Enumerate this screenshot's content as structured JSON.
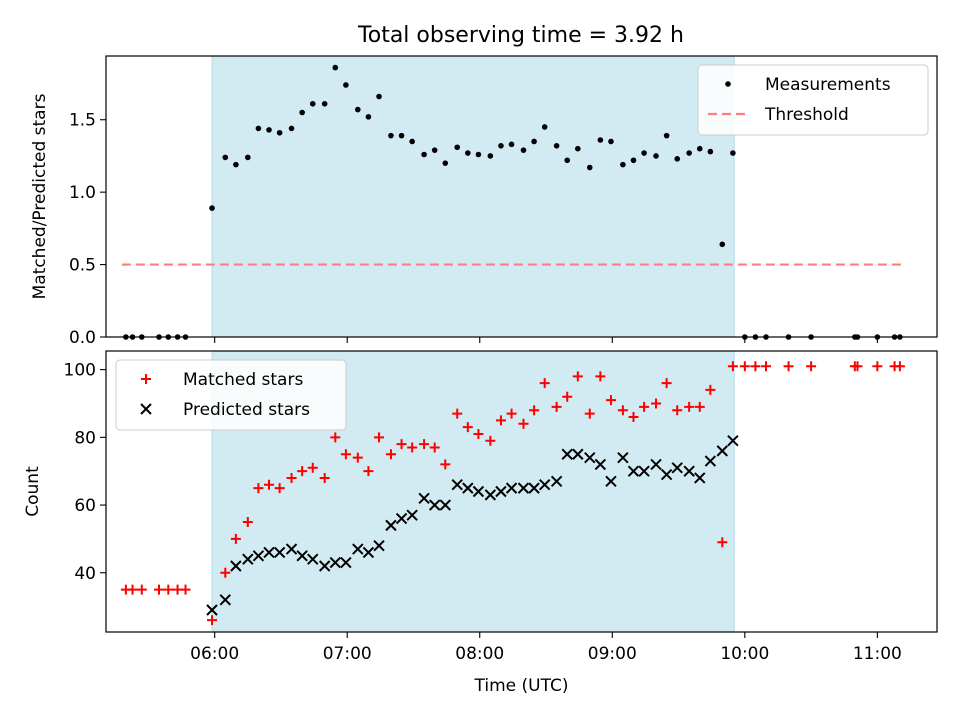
{
  "chart_data": [
    {
      "type": "scatter",
      "title": "Total observing time = 3.92 h",
      "xlabel": "",
      "ylabel": "Matched/Predicted stars",
      "ylim": [
        0,
        1.94
      ],
      "yticks": [
        0.0,
        0.5,
        1.0,
        1.5
      ],
      "ytick_labels": [
        "0.0",
        "0.5",
        "1.0",
        "1.5"
      ],
      "xlim": [
        5.18,
        11.45
      ],
      "shaded_span": [
        5.98,
        9.92
      ],
      "shade_color": "#add8e6",
      "legend_position": "upper right",
      "series": [
        {
          "name": "Measurements",
          "kind": "dot",
          "color": "#000000",
          "x": [
            5.33,
            5.38,
            5.45,
            5.58,
            5.65,
            5.72,
            5.78,
            5.98,
            6.08,
            6.16,
            6.25,
            6.33,
            6.41,
            6.49,
            6.58,
            6.66,
            6.74,
            6.83,
            6.91,
            6.99,
            7.08,
            7.16,
            7.24,
            7.33,
            7.41,
            7.49,
            7.58,
            7.66,
            7.74,
            7.83,
            7.91,
            7.99,
            8.08,
            8.16,
            8.24,
            8.33,
            8.41,
            8.49,
            8.58,
            8.66,
            8.74,
            8.83,
            8.91,
            8.99,
            9.08,
            9.16,
            9.24,
            9.33,
            9.41,
            9.49,
            9.58,
            9.66,
            9.74,
            9.83,
            9.91,
            10.0,
            10.08,
            10.16,
            10.33,
            10.5,
            10.83,
            10.85,
            11.0,
            11.13,
            11.17
          ],
          "y": [
            0,
            0,
            0,
            0,
            0,
            0,
            0,
            0.89,
            1.24,
            1.19,
            1.24,
            1.44,
            1.43,
            1.41,
            1.44,
            1.55,
            1.61,
            1.61,
            1.86,
            1.74,
            1.57,
            1.52,
            1.66,
            1.39,
            1.39,
            1.35,
            1.26,
            1.29,
            1.2,
            1.31,
            1.27,
            1.26,
            1.25,
            1.32,
            1.33,
            1.29,
            1.35,
            1.45,
            1.32,
            1.22,
            1.3,
            1.17,
            1.36,
            1.35,
            1.19,
            1.22,
            1.27,
            1.25,
            1.39,
            1.23,
            1.27,
            1.3,
            1.28,
            0.64,
            1.27,
            0,
            0,
            0,
            0,
            0,
            0,
            0,
            0,
            0,
            0
          ]
        },
        {
          "name": "Threshold",
          "kind": "dashed-line",
          "color": "#ff7f7f",
          "x": [
            5.3,
            11.2
          ],
          "y": [
            0.5,
            0.5
          ]
        }
      ]
    },
    {
      "type": "scatter",
      "title": "",
      "xlabel": "Time (UTC)",
      "ylabel": "Count",
      "ylim": [
        22.5,
        105.5
      ],
      "yticks": [
        40,
        60,
        80,
        100
      ],
      "ytick_labels": [
        "40",
        "60",
        "80",
        "100"
      ],
      "xlim": [
        5.18,
        11.45
      ],
      "xticks": [
        6,
        7,
        8,
        9,
        10,
        11
      ],
      "xtick_labels": [
        "06:00",
        "07:00",
        "08:00",
        "09:00",
        "10:00",
        "11:00"
      ],
      "shaded_span": [
        5.98,
        9.92
      ],
      "shade_color": "#add8e6",
      "legend_position": "upper left",
      "series": [
        {
          "name": "Matched stars",
          "kind": "plus",
          "color": "#ff0000",
          "x": [
            5.33,
            5.38,
            5.45,
            5.58,
            5.65,
            5.72,
            5.78,
            5.98,
            6.08,
            6.16,
            6.25,
            6.33,
            6.41,
            6.49,
            6.58,
            6.66,
            6.74,
            6.83,
            6.91,
            6.99,
            7.08,
            7.16,
            7.24,
            7.33,
            7.41,
            7.49,
            7.58,
            7.66,
            7.74,
            7.83,
            7.91,
            7.99,
            8.08,
            8.16,
            8.24,
            8.33,
            8.41,
            8.49,
            8.58,
            8.66,
            8.74,
            8.83,
            8.91,
            8.99,
            9.08,
            9.16,
            9.24,
            9.33,
            9.41,
            9.49,
            9.58,
            9.66,
            9.74,
            9.83,
            9.91,
            10.0,
            10.08,
            10.16,
            10.33,
            10.5,
            10.83,
            10.85,
            11.0,
            11.13,
            11.17
          ],
          "y": [
            35,
            35,
            35,
            35,
            35,
            35,
            35,
            26,
            40,
            50,
            55,
            65,
            66,
            65,
            68,
            70,
            71,
            68,
            80,
            75,
            74,
            70,
            80,
            75,
            78,
            77,
            78,
            77,
            72,
            87,
            83,
            81,
            79,
            85,
            87,
            84,
            88,
            96,
            89,
            92,
            98,
            87,
            98,
            91,
            88,
            86,
            89,
            90,
            96,
            88,
            89,
            89,
            94,
            49,
            101,
            101,
            101,
            101,
            101,
            101,
            101,
            101,
            101,
            101,
            101
          ]
        },
        {
          "name": "Predicted stars",
          "kind": "x",
          "color": "#000000",
          "x": [
            5.98,
            6.08,
            6.16,
            6.25,
            6.33,
            6.41,
            6.49,
            6.58,
            6.66,
            6.74,
            6.83,
            6.91,
            6.99,
            7.08,
            7.16,
            7.24,
            7.33,
            7.41,
            7.49,
            7.58,
            7.66,
            7.74,
            7.83,
            7.91,
            7.99,
            8.08,
            8.16,
            8.24,
            8.33,
            8.41,
            8.49,
            8.58,
            8.66,
            8.74,
            8.83,
            8.91,
            8.99,
            9.08,
            9.16,
            9.24,
            9.33,
            9.41,
            9.49,
            9.58,
            9.66,
            9.74,
            9.83,
            9.91
          ],
          "y": [
            29,
            32,
            42,
            44,
            45,
            46,
            46,
            47,
            45,
            44,
            42,
            43,
            43,
            47,
            46,
            48,
            54,
            56,
            57,
            62,
            60,
            60,
            66,
            65,
            64,
            63,
            64,
            65,
            65,
            65,
            66,
            67,
            75,
            75,
            74,
            72,
            67,
            74,
            70,
            70,
            72,
            69,
            71,
            70,
            68,
            73,
            76,
            79
          ]
        }
      ]
    }
  ]
}
